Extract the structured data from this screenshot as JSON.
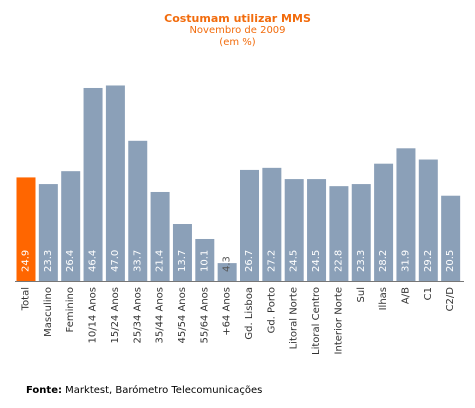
{
  "colors": {
    "highlight": "#ff6600",
    "bar": "#8ba0b8",
    "axis": "#777777",
    "text_title": "#f26c0d"
  },
  "source": {
    "label": "Fonte:",
    "text": "Marktest, Barómetro Telecomunicações"
  },
  "chart_data": {
    "type": "bar",
    "title": "Costumam utilizar MMS",
    "subtitle": "Novembro de 2009",
    "unit_note": "(em %)",
    "xlabel": "",
    "ylabel": "",
    "ylim": [
      0,
      50
    ],
    "grid": false,
    "legend": "none",
    "categories": [
      "Total",
      "Masculino",
      "Feminino",
      "10/14 Anos",
      "15/24 Anos",
      "25/34 Anos",
      "35/44 Anos",
      "45/54 Anos",
      "55/64 Anos",
      "+64 Anos",
      "Gd. Lisboa",
      "Gd. Porto",
      "Litoral Norte",
      "Litoral Centro",
      "Interior Norte",
      "Sul",
      "Ilhas",
      "A/B",
      "C1",
      "C2/D"
    ],
    "value_labels": [
      "24.9",
      "23.3",
      "26.4",
      "46.4",
      "47.0",
      "33.7",
      "21.4",
      "13.7",
      "10.1",
      "4.3",
      "26.7",
      "27.2",
      "24.5",
      "24.5",
      "22.8",
      "23.3",
      "28.2",
      "31.9",
      "29.2",
      "20.5"
    ],
    "values": [
      24.9,
      23.3,
      26.4,
      46.4,
      47.0,
      33.7,
      21.4,
      13.7,
      10.1,
      4.3,
      26.7,
      27.2,
      24.5,
      24.5,
      22.8,
      23.3,
      28.2,
      31.9,
      29.2,
      20.5
    ],
    "highlight_index": 0
  }
}
